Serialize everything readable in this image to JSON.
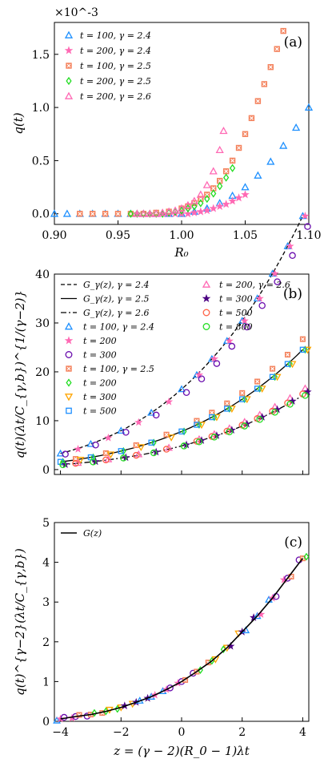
{
  "chart_data": [
    {
      "type": "scatter",
      "panel_label": "(a)",
      "xlabel": "R_0",
      "ylabel": "q(t)",
      "y_multiplier": "×10^-3",
      "xlim": [
        0.9,
        1.1
      ],
      "ylim": [
        -0.1,
        1.8
      ],
      "xticks": [
        "0.90",
        "0.95",
        "1.00",
        "1.05",
        "1.10"
      ],
      "yticks": [
        "0.0",
        "0.5",
        "1.0",
        "1.5"
      ],
      "legend_position": "upper-left",
      "series": [
        {
          "name": "t = 100, γ = 2.4",
          "marker": "triangle-up",
          "color": "#1e90ff",
          "x": [
            0.9,
            0.91,
            0.92,
            0.93,
            0.94,
            0.95,
            0.96,
            0.97,
            0.98,
            0.99,
            1.0,
            1.01,
            1.02,
            1.03,
            1.04,
            1.05,
            1.06,
            1.07,
            1.08,
            1.09,
            1.1
          ],
          "y": [
            0.0,
            0.0,
            0.0,
            0.0,
            0.0,
            0.0,
            0.0,
            0.0,
            0.0,
            0.0,
            0.0,
            0.02,
            0.05,
            0.1,
            0.17,
            0.25,
            0.36,
            0.49,
            0.64,
            0.81,
            1.0
          ]
        },
        {
          "name": "t = 200, γ = 2.4",
          "marker": "star",
          "color": "#ff69b4",
          "x": [
            0.965,
            0.97,
            0.975,
            0.98,
            0.985,
            0.99,
            0.995,
            1.0,
            1.005,
            1.01,
            1.015,
            1.02,
            1.025,
            1.03,
            1.035,
            1.04,
            1.045,
            1.05
          ],
          "y": [
            0.0,
            0.0,
            0.0,
            0.0,
            0.0,
            0.0,
            0.0,
            0.0,
            0.0,
            0.01,
            0.02,
            0.03,
            0.05,
            0.07,
            0.09,
            0.12,
            0.15,
            0.18
          ]
        },
        {
          "name": "t = 100, γ = 2.5",
          "marker": "x-square",
          "color": "#f4845f",
          "x": [
            0.92,
            0.93,
            0.94,
            0.95,
            0.96,
            0.97,
            0.98,
            0.99,
            1.0,
            1.005,
            1.01,
            1.015,
            1.02,
            1.025,
            1.03,
            1.035,
            1.04,
            1.045,
            1.05,
            1.055,
            1.06,
            1.065,
            1.07,
            1.075,
            1.08
          ],
          "y": [
            0.0,
            0.0,
            0.0,
            0.0,
            0.0,
            0.0,
            0.01,
            0.02,
            0.05,
            0.07,
            0.1,
            0.14,
            0.18,
            0.24,
            0.31,
            0.4,
            0.5,
            0.62,
            0.75,
            0.9,
            1.06,
            1.22,
            1.38,
            1.55,
            1.72
          ]
        },
        {
          "name": "t = 200, γ = 2.5",
          "marker": "diamond",
          "color": "#22dd22",
          "x": [
            0.96,
            0.965,
            0.97,
            0.975,
            0.98,
            0.985,
            0.99,
            0.995,
            1.0,
            1.005,
            1.01,
            1.015,
            1.02,
            1.025,
            1.03,
            1.035,
            1.04
          ],
          "y": [
            0.0,
            0.0,
            0.0,
            0.0,
            0.0,
            0.0,
            0.01,
            0.02,
            0.03,
            0.05,
            0.07,
            0.1,
            0.14,
            0.19,
            0.26,
            0.34,
            0.43
          ]
        },
        {
          "name": "t = 200, γ = 2.6",
          "marker": "triangle-up",
          "color": "#ff69b4",
          "x": [
            0.965,
            0.97,
            0.975,
            0.98,
            0.985,
            0.99,
            0.995,
            1.0,
            1.005,
            1.01,
            1.015,
            1.02,
            1.025,
            1.03,
            1.033
          ],
          "y": [
            0.0,
            0.0,
            0.0,
            0.0,
            0.01,
            0.02,
            0.03,
            0.05,
            0.08,
            0.12,
            0.18,
            0.27,
            0.4,
            0.6,
            0.78
          ]
        }
      ]
    },
    {
      "type": "scatter",
      "panel_label": "(b)",
      "xlabel": "",
      "ylabel": "q(t)(λt/C_{γ,b})^{1/(γ−2)}",
      "xlim": [
        -4.2,
        4.2
      ],
      "ylim": [
        -1,
        40
      ],
      "yticks": [
        "0",
        "10",
        "20",
        "30",
        "40"
      ],
      "legend_position": "upper-left",
      "lines": [
        {
          "name": "G_γ(z), γ = 2.4",
          "style": "dashed",
          "a": 3.6,
          "b": 0.55
        },
        {
          "name": "G_γ(z), γ = 2.5",
          "style": "solid",
          "a": 1.7,
          "b": 0.55
        },
        {
          "name": "G_γ(z), γ = 2.6",
          "style": "dashdot",
          "a": 1.05,
          "b": 0.55
        }
      ],
      "series": [
        {
          "name": "t = 100, γ = 2.4",
          "marker": "triangle-up",
          "color": "#1e90ff",
          "a": 3.6
        },
        {
          "name": "t = 200",
          "marker": "star",
          "color": "#ff69b4",
          "a": 3.6
        },
        {
          "name": "t = 300",
          "marker": "circle",
          "color": "#6a0dad",
          "a": 3.45
        },
        {
          "name": "t = 100, γ = 2.5",
          "marker": "x-square",
          "color": "#f4845f",
          "a": 1.85
        },
        {
          "name": "t = 200",
          "marker": "diamond",
          "color": "#22dd22",
          "a": 1.7
        },
        {
          "name": "t = 300",
          "marker": "triangle-down",
          "color": "#ffa500",
          "a": 1.7
        },
        {
          "name": "t = 500",
          "marker": "square",
          "color": "#1e90ff",
          "a": 1.7
        },
        {
          "name": "t = 200, γ = 2.6",
          "marker": "triangle-up",
          "color": "#ff69b4",
          "a": 1.15
        },
        {
          "name": "t = 300",
          "marker": "star",
          "color": "#4b0082",
          "a": 1.1
        },
        {
          "name": "t = 500",
          "marker": "circle",
          "color": "#ff6347",
          "a": 1.07
        },
        {
          "name": "t = 800",
          "marker": "circle",
          "color": "#22dd22",
          "a": 1.05
        }
      ],
      "z_samples": [
        -4.0,
        -3.5,
        -3.0,
        -2.5,
        -2.0,
        -1.5,
        -1.0,
        -0.5,
        0.0,
        0.5,
        1.0,
        1.5,
        2.0,
        2.5,
        3.0,
        3.5,
        4.0
      ]
    },
    {
      "type": "scatter",
      "panel_label": "(c)",
      "xlabel": "z = (γ − 2)(R_0 − 1)λt",
      "ylabel": "q(t)^{γ−2}(λt/C_{γ,b})",
      "xlim": [
        -4.2,
        4.2
      ],
      "ylim": [
        0,
        5
      ],
      "xticks": [
        "−4",
        "−2",
        "0",
        "2",
        "4"
      ],
      "yticks": [
        "0",
        "1",
        "2",
        "3",
        "4",
        "5"
      ],
      "legend_position": "upper-left",
      "lines": [
        {
          "name": "G(z)",
          "style": "solid"
        }
      ],
      "collapsed_points": {
        "z": [
          -4.0,
          -3.5,
          -3.0,
          -2.5,
          -2.0,
          -1.5,
          -1.0,
          -0.5,
          0.0,
          0.5,
          1.0,
          1.5,
          2.0,
          2.5,
          3.0,
          3.5,
          4.0
        ],
        "G": [
          0.06,
          0.12,
          0.17,
          0.25,
          0.35,
          0.48,
          0.62,
          0.8,
          1.0,
          1.25,
          1.52,
          1.85,
          2.25,
          2.65,
          3.1,
          3.6,
          4.1
        ]
      }
    }
  ]
}
